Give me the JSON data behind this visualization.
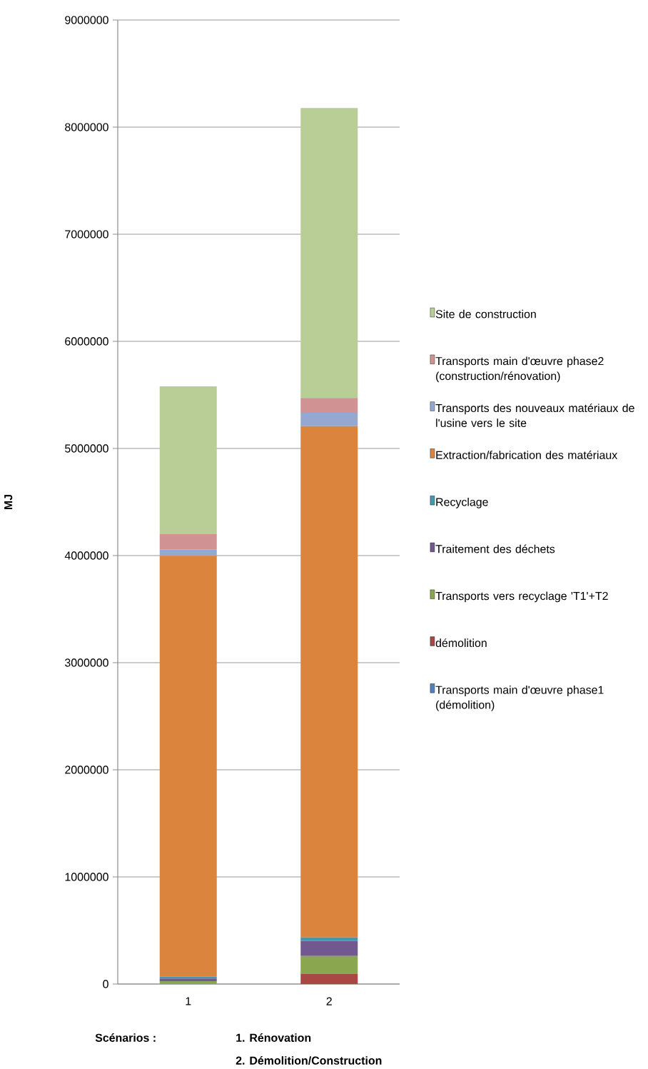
{
  "chart_data": {
    "type": "bar",
    "stacked": true,
    "ylabel": "MJ",
    "categories": [
      "1",
      "2"
    ],
    "series": [
      {
        "name": "Transports main d'œuvre phase1 (démolition)",
        "color": "#4f81bd",
        "values": [
          0,
          0
        ]
      },
      {
        "name": "démolition",
        "color": "#a94744",
        "values": [
          0,
          93000
        ]
      },
      {
        "name": "Transports vers recyclage 'T1'+T2",
        "color": "#8aa64f",
        "values": [
          27000,
          169000
        ]
      },
      {
        "name": "Traitement des déchets",
        "color": "#71588f",
        "values": [
          25000,
          142000
        ]
      },
      {
        "name": "Recyclage",
        "color": "#4198af",
        "values": [
          16000,
          31000
        ]
      },
      {
        "name": "Extraction/fabrication des matériaux",
        "color": "#db843d",
        "values": [
          3930000,
          4773000
        ]
      },
      {
        "name": "Transports des nouveaux matériaux de l'usine vers le site",
        "color": "#95a9d0",
        "values": [
          60000,
          125000
        ]
      },
      {
        "name": "Transports main d'œuvre phase2 (construction/rénovation)",
        "color": "#d09292",
        "values": [
          142000,
          138000
        ]
      },
      {
        "name": "Site de construction",
        "color": "#b9cd96",
        "values": [
          1380000,
          2707000
        ]
      }
    ],
    "ylim": [
      0,
      9000000
    ],
    "yticks": [
      0,
      1000000,
      2000000,
      3000000,
      4000000,
      5000000,
      6000000,
      7000000,
      8000000,
      9000000
    ],
    "grid": "y",
    "legend": "right",
    "annotations": [
      "Scénarios :",
      "1. Rénovation",
      "2. Démolition/Construction"
    ]
  }
}
